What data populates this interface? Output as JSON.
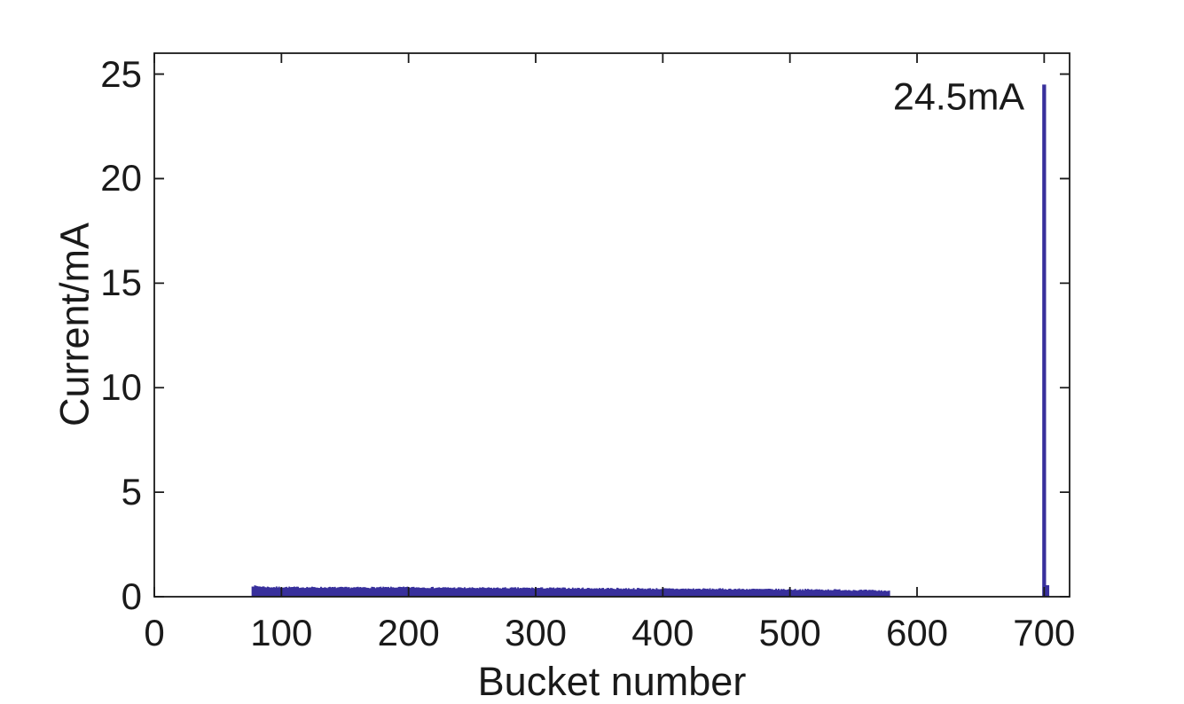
{
  "chart_data": {
    "type": "bar",
    "title": "",
    "xlabel": "Bucket number",
    "ylabel": "Current/mA",
    "xlim": [
      0,
      720
    ],
    "ylim": [
      0,
      26
    ],
    "xticks": [
      0,
      100,
      200,
      300,
      400,
      500,
      600,
      700
    ],
    "yticks": [
      0,
      5,
      10,
      15,
      20,
      25
    ],
    "grid": false,
    "legend": null,
    "box": true,
    "tick_direction": "in",
    "series_color": "#38309c",
    "axis_color": "#1a1a1a",
    "background_color": "#ffffff",
    "annotation": {
      "text": "24.5mA",
      "anchor_bucket": 684.5,
      "anchor_mA": 23.9,
      "align": "right"
    },
    "bunch_train": {
      "description": "quasi-uniform multibunch fill, one bar per bucket",
      "start_bucket": 77,
      "end_bucket": 578,
      "profile": [
        [
          77,
          0.52
        ],
        [
          90,
          0.46
        ],
        [
          150,
          0.44
        ],
        [
          200,
          0.45
        ],
        [
          250,
          0.42
        ],
        [
          300,
          0.42
        ],
        [
          350,
          0.4
        ],
        [
          400,
          0.38
        ],
        [
          450,
          0.37
        ],
        [
          500,
          0.35
        ],
        [
          540,
          0.33
        ],
        [
          565,
          0.3
        ],
        [
          578,
          0.28
        ]
      ],
      "noise_amplitude": 0.035,
      "noise_seed": 7
    },
    "spike": {
      "bucket": 700,
      "value_mA": 24.5,
      "width_buckets": 3
    },
    "spike_base": {
      "start_bucket": 700,
      "end_bucket": 704,
      "value_mA": 0.55
    }
  }
}
